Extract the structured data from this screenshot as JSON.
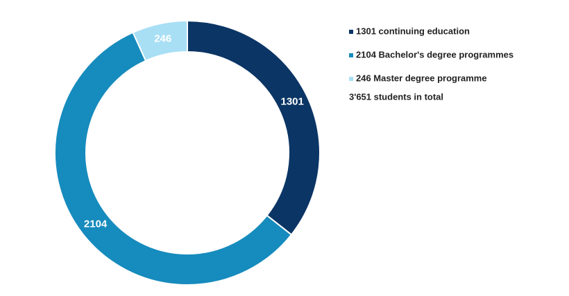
{
  "chart_data": {
    "type": "donut",
    "labels": [
      "1301 continuing education",
      "2104 Bachelor's degree programmes",
      "246 Master degree programme"
    ],
    "values": [
      1301,
      2104,
      246
    ],
    "colors": [
      "#0b3565",
      "#168bbd",
      "#a8dff5"
    ],
    "annotation": "3'651 students in total",
    "legend": "right"
  }
}
